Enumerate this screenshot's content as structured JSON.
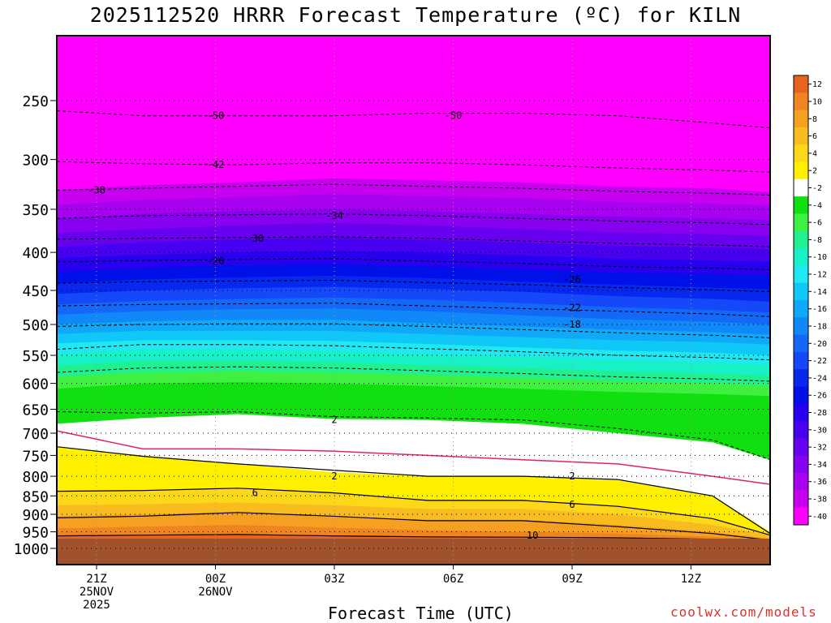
{
  "title": "2025112520 HRRR Forecast Temperature (ºC) for KILN",
  "xlabel": "Forecast Time (UTC)",
  "credit": "coolwx.com/models",
  "chart_data": {
    "type": "heatmap",
    "y_scale": "log",
    "y_inverted": true,
    "yticks": [
      250,
      300,
      350,
      400,
      450,
      500,
      550,
      600,
      650,
      700,
      750,
      800,
      850,
      900,
      950,
      1000
    ],
    "xticks": [
      {
        "label": "21Z",
        "sub1": "25NOV",
        "sub2": "2025",
        "hour": -23
      },
      {
        "label": "00Z",
        "sub1": "26NOV",
        "sub2": "",
        "hour": -20
      },
      {
        "label": "03Z",
        "sub1": "",
        "sub2": "",
        "hour": -17
      },
      {
        "label": "06Z",
        "sub1": "",
        "sub2": "",
        "hour": -14
      },
      {
        "label": "09Z",
        "sub1": "",
        "sub2": "",
        "hour": -11
      },
      {
        "label": "12Z",
        "sub1": "",
        "sub2": "",
        "hour": -8
      }
    ],
    "colorbar": {
      "labels": [
        "12",
        "10",
        "8",
        "6",
        "4",
        "2",
        "-2",
        "-4",
        "-6",
        "-8",
        "-10",
        "-12",
        "-14",
        "-16",
        "-18",
        "-20",
        "-22",
        "-24",
        "-26",
        "-28",
        "-30",
        "-32",
        "-34",
        "-36",
        "-38",
        "-40"
      ],
      "colors": [
        "#e8641e",
        "#f08420",
        "#f5a020",
        "#f8bc20",
        "#fcd818",
        "#fff000",
        "#ffffff",
        "#10e010",
        "#40f040",
        "#20f090",
        "#18f0c8",
        "#20e8f0",
        "#10c8f8",
        "#10a8f8",
        "#1088f8",
        "#1468f8",
        "#1448f8",
        "#0828f0",
        "#0010e8",
        "#2800f0",
        "#4800f0",
        "#6800f0",
        "#8800f0",
        "#a800f0",
        "#c800f0",
        "#ff00ff"
      ]
    },
    "contour_labels": [
      {
        "text": "-50",
        "time": -20,
        "p": 262
      },
      {
        "text": "-50",
        "time": -14,
        "p": 262
      },
      {
        "text": "-42",
        "time": -20,
        "p": 305
      },
      {
        "text": "-38",
        "time": -23,
        "p": 330
      },
      {
        "text": "-34",
        "time": -17,
        "p": 357
      },
      {
        "text": "-30",
        "time": -19,
        "p": 383
      },
      {
        "text": "-26",
        "time": -20,
        "p": 411
      },
      {
        "text": "-26",
        "time": -11,
        "p": 435
      },
      {
        "text": "-22",
        "time": -11,
        "p": 475
      },
      {
        "text": "-18",
        "time": -11,
        "p": 500
      },
      {
        "text": "2",
        "time": -17,
        "p": 672
      },
      {
        "text": "2",
        "time": -17,
        "p": 800
      },
      {
        "text": "2",
        "time": -11,
        "p": 800
      },
      {
        "text": "6",
        "time": -19,
        "p": 842
      },
      {
        "text": "6",
        "time": -11,
        "p": 873
      },
      {
        "text": "10",
        "time": -12,
        "p": 961
      }
    ]
  }
}
